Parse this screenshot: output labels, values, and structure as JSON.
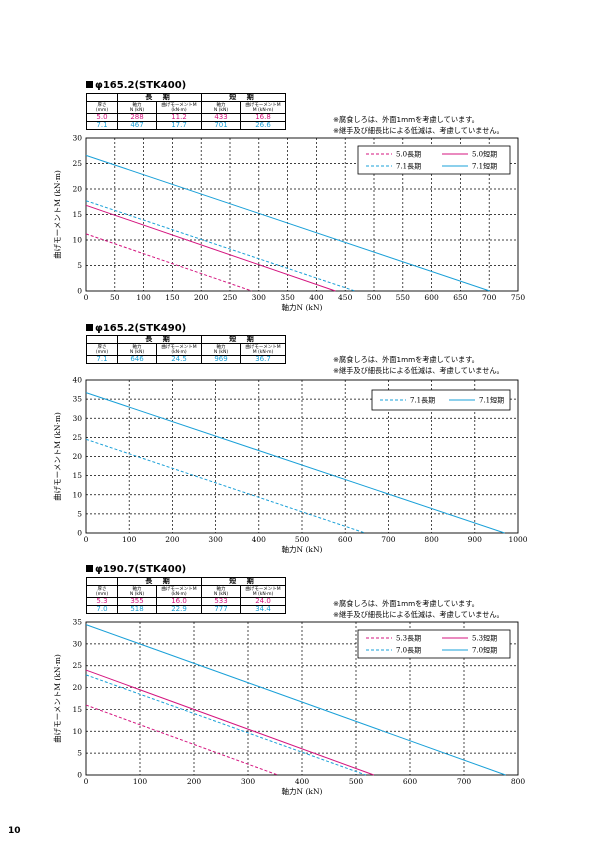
{
  "page_number": "10",
  "colors": {
    "magenta": "#d4147f",
    "cyan": "#1aa0d8"
  },
  "table_labels": {
    "long_term": "長 期",
    "short_term": "短 期",
    "thickness": "厚さ",
    "thickness_unit": "(mm)",
    "axial": "軸力",
    "axial_unit": "N (kN)",
    "moment": "曲げモーメントM",
    "moment_unit": "(kN·m)",
    "moment_unit_short": "M (kN·m)"
  },
  "notes": [
    "※腐食しろは、外面1mmを考慮しています。",
    "※継手及び細長比による低減は、考慮していません。"
  ],
  "sections": [
    {
      "title": "φ165.2(STK400)",
      "rows": [
        {
          "thickness": "5.0",
          "long_n": "288",
          "long_m": "11.2",
          "short_n": "433",
          "short_m": "16.8",
          "color": "#d4147f"
        },
        {
          "thickness": "7.1",
          "long_n": "467",
          "long_m": "17.7",
          "short_n": "701",
          "short_m": "26.6",
          "color": "#1aa0d8"
        }
      ]
    },
    {
      "title": "φ165.2(STK490)",
      "rows": [
        {
          "thickness": "7.1",
          "long_n": "646",
          "long_m": "24.5",
          "short_n": "969",
          "short_m": "36.7",
          "color": "#1aa0d8"
        }
      ]
    },
    {
      "title": "φ190.7(STK400)",
      "rows": [
        {
          "thickness": "5.3",
          "long_n": "355",
          "long_m": "16.0",
          "short_n": "533",
          "short_m": "24.0",
          "color": "#d4147f"
        },
        {
          "thickness": "7.0",
          "long_n": "518",
          "long_m": "22.9",
          "short_n": "777",
          "short_m": "34.4",
          "color": "#1aa0d8"
        }
      ]
    }
  ],
  "chart_data": [
    {
      "type": "line",
      "xlabel": "軸力N (kN)",
      "ylabel": "曲げモーメントM (kN·m)",
      "xlim": [
        0,
        750
      ],
      "ylim": [
        0,
        30
      ],
      "xticks": [
        0,
        50,
        100,
        150,
        200,
        250,
        300,
        350,
        400,
        450,
        500,
        550,
        600,
        650,
        700,
        750
      ],
      "yticks": [
        0,
        5,
        10,
        15,
        20,
        25,
        30
      ],
      "grid": true,
      "legend": "top-right",
      "series": [
        {
          "name": "5.0長期",
          "x": [
            0,
            288
          ],
          "y": [
            11.2,
            0
          ],
          "color": "#d4147f",
          "dash": true
        },
        {
          "name": "5.0短期",
          "x": [
            0,
            433
          ],
          "y": [
            16.8,
            0
          ],
          "color": "#d4147f",
          "dash": false
        },
        {
          "name": "7.1長期",
          "x": [
            0,
            467
          ],
          "y": [
            17.7,
            0
          ],
          "color": "#1aa0d8",
          "dash": true
        },
        {
          "name": "7.1短期",
          "x": [
            0,
            701
          ],
          "y": [
            26.6,
            0
          ],
          "color": "#1aa0d8",
          "dash": false
        }
      ]
    },
    {
      "type": "line",
      "xlabel": "軸力N (kN)",
      "ylabel": "曲げモーメントM (kN·m)",
      "xlim": [
        0,
        1000
      ],
      "ylim": [
        0,
        40
      ],
      "xticks": [
        0,
        100,
        200,
        300,
        400,
        500,
        600,
        700,
        800,
        900,
        1000
      ],
      "yticks": [
        0,
        5,
        10,
        15,
        20,
        25,
        30,
        35,
        40
      ],
      "grid": true,
      "legend": "top-right",
      "series": [
        {
          "name": "7.1長期",
          "x": [
            0,
            646
          ],
          "y": [
            24.5,
            0
          ],
          "color": "#1aa0d8",
          "dash": true
        },
        {
          "name": "7.1短期",
          "x": [
            0,
            969
          ],
          "y": [
            36.7,
            0
          ],
          "color": "#1aa0d8",
          "dash": false
        }
      ]
    },
    {
      "type": "line",
      "xlabel": "軸力N (kN)",
      "ylabel": "曲げモーメントM (kN·m)",
      "xlim": [
        0,
        800
      ],
      "ylim": [
        0,
        35
      ],
      "xticks": [
        0,
        100,
        200,
        300,
        400,
        500,
        600,
        700,
        800
      ],
      "yticks": [
        0,
        5,
        10,
        15,
        20,
        25,
        30,
        35
      ],
      "grid": true,
      "legend": "top-right",
      "series": [
        {
          "name": "5.3長期",
          "x": [
            0,
            355
          ],
          "y": [
            16.0,
            0
          ],
          "color": "#d4147f",
          "dash": true
        },
        {
          "name": "5.3短期",
          "x": [
            0,
            533
          ],
          "y": [
            24.0,
            0
          ],
          "color": "#d4147f",
          "dash": false
        },
        {
          "name": "7.0長期",
          "x": [
            0,
            518
          ],
          "y": [
            22.9,
            0
          ],
          "color": "#1aa0d8",
          "dash": true
        },
        {
          "name": "7.0短期",
          "x": [
            0,
            777
          ],
          "y": [
            34.4,
            0
          ],
          "color": "#1aa0d8",
          "dash": false
        }
      ]
    }
  ]
}
